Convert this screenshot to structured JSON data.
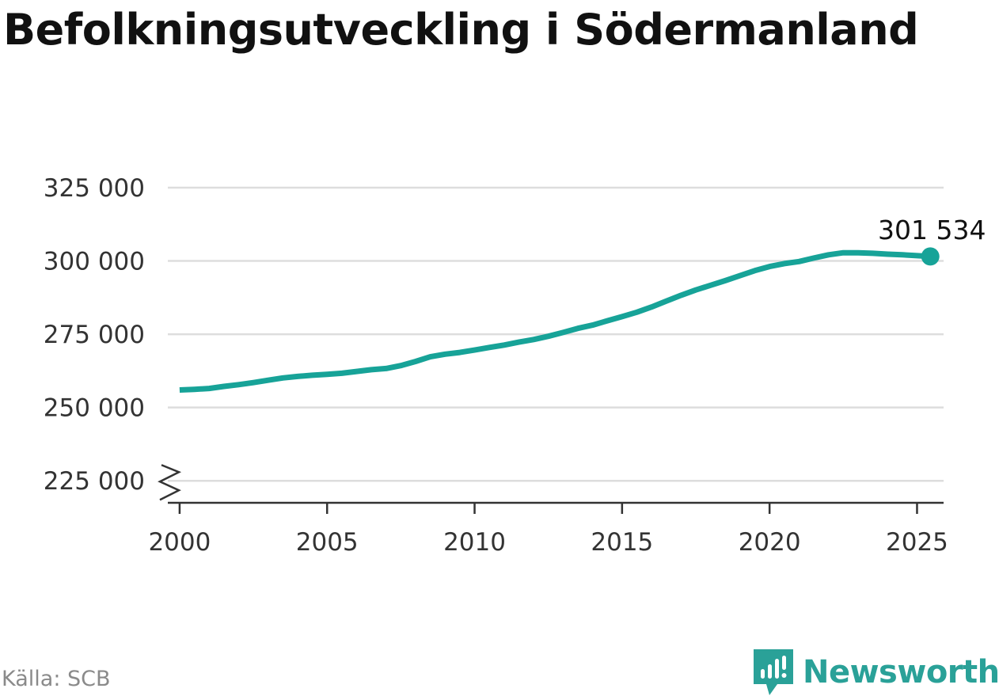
{
  "title": "Befolkningsutveckling i Södermanland",
  "source": "Källa: SCB",
  "brand": {
    "name": "Newsworthy",
    "icon": "newsworthy-logo-icon",
    "color": "#2aa198"
  },
  "chart_data": {
    "type": "line",
    "title": "Befolkningsutveckling i Södermanland",
    "xlabel": "",
    "ylabel": "",
    "xlim": [
      1999.6,
      2025.9
    ],
    "ylim": [
      217500,
      325000
    ],
    "axis_break": true,
    "grid": true,
    "x_ticks": [
      2000,
      2005,
      2010,
      2015,
      2020,
      2025
    ],
    "x_tick_labels": [
      "2000",
      "2005",
      "2010",
      "2015",
      "2020",
      "2025"
    ],
    "y_ticks": [
      225000,
      250000,
      275000,
      300000,
      325000
    ],
    "y_tick_labels": [
      "225 000",
      "250 000",
      "275 000",
      "300 000",
      "325 000"
    ],
    "line_color": "#17a398",
    "end_label": "301 534",
    "series": [
      {
        "x": [
          2000.0,
          2000.5,
          2001.0,
          2001.5,
          2002.0,
          2002.5,
          2003.0,
          2003.5,
          2004.0,
          2004.5,
          2005.0,
          2005.5,
          2006.0,
          2006.5,
          2007.0,
          2007.5,
          2008.0,
          2008.5,
          2009.0,
          2009.5,
          2010.0,
          2010.5,
          2011.0,
          2011.5,
          2012.0,
          2012.5,
          2013.0,
          2013.5,
          2014.0,
          2014.5,
          2015.0,
          2015.5,
          2016.0,
          2016.5,
          2017.0,
          2017.5,
          2018.0,
          2018.5,
          2019.0,
          2019.5,
          2020.0,
          2020.5,
          2021.0,
          2021.5,
          2022.0,
          2022.5,
          2023.0,
          2023.5,
          2024.0,
          2024.5,
          2025.0,
          2025.45
        ],
        "values": [
          256000,
          256200,
          256500,
          257200,
          257800,
          258500,
          259300,
          260100,
          260600,
          261000,
          261300,
          261700,
          262300,
          262900,
          263300,
          264300,
          265700,
          267300,
          268200,
          268800,
          269600,
          270500,
          271300,
          272300,
          273200,
          274300,
          275600,
          277000,
          278100,
          279600,
          281000,
          282500,
          284300,
          286300,
          288300,
          290100,
          291700,
          293300,
          295000,
          296700,
          298100,
          299100,
          299800,
          301000,
          302100,
          302800,
          302800,
          302600,
          302300,
          302100,
          301800,
          301534
        ]
      }
    ]
  }
}
